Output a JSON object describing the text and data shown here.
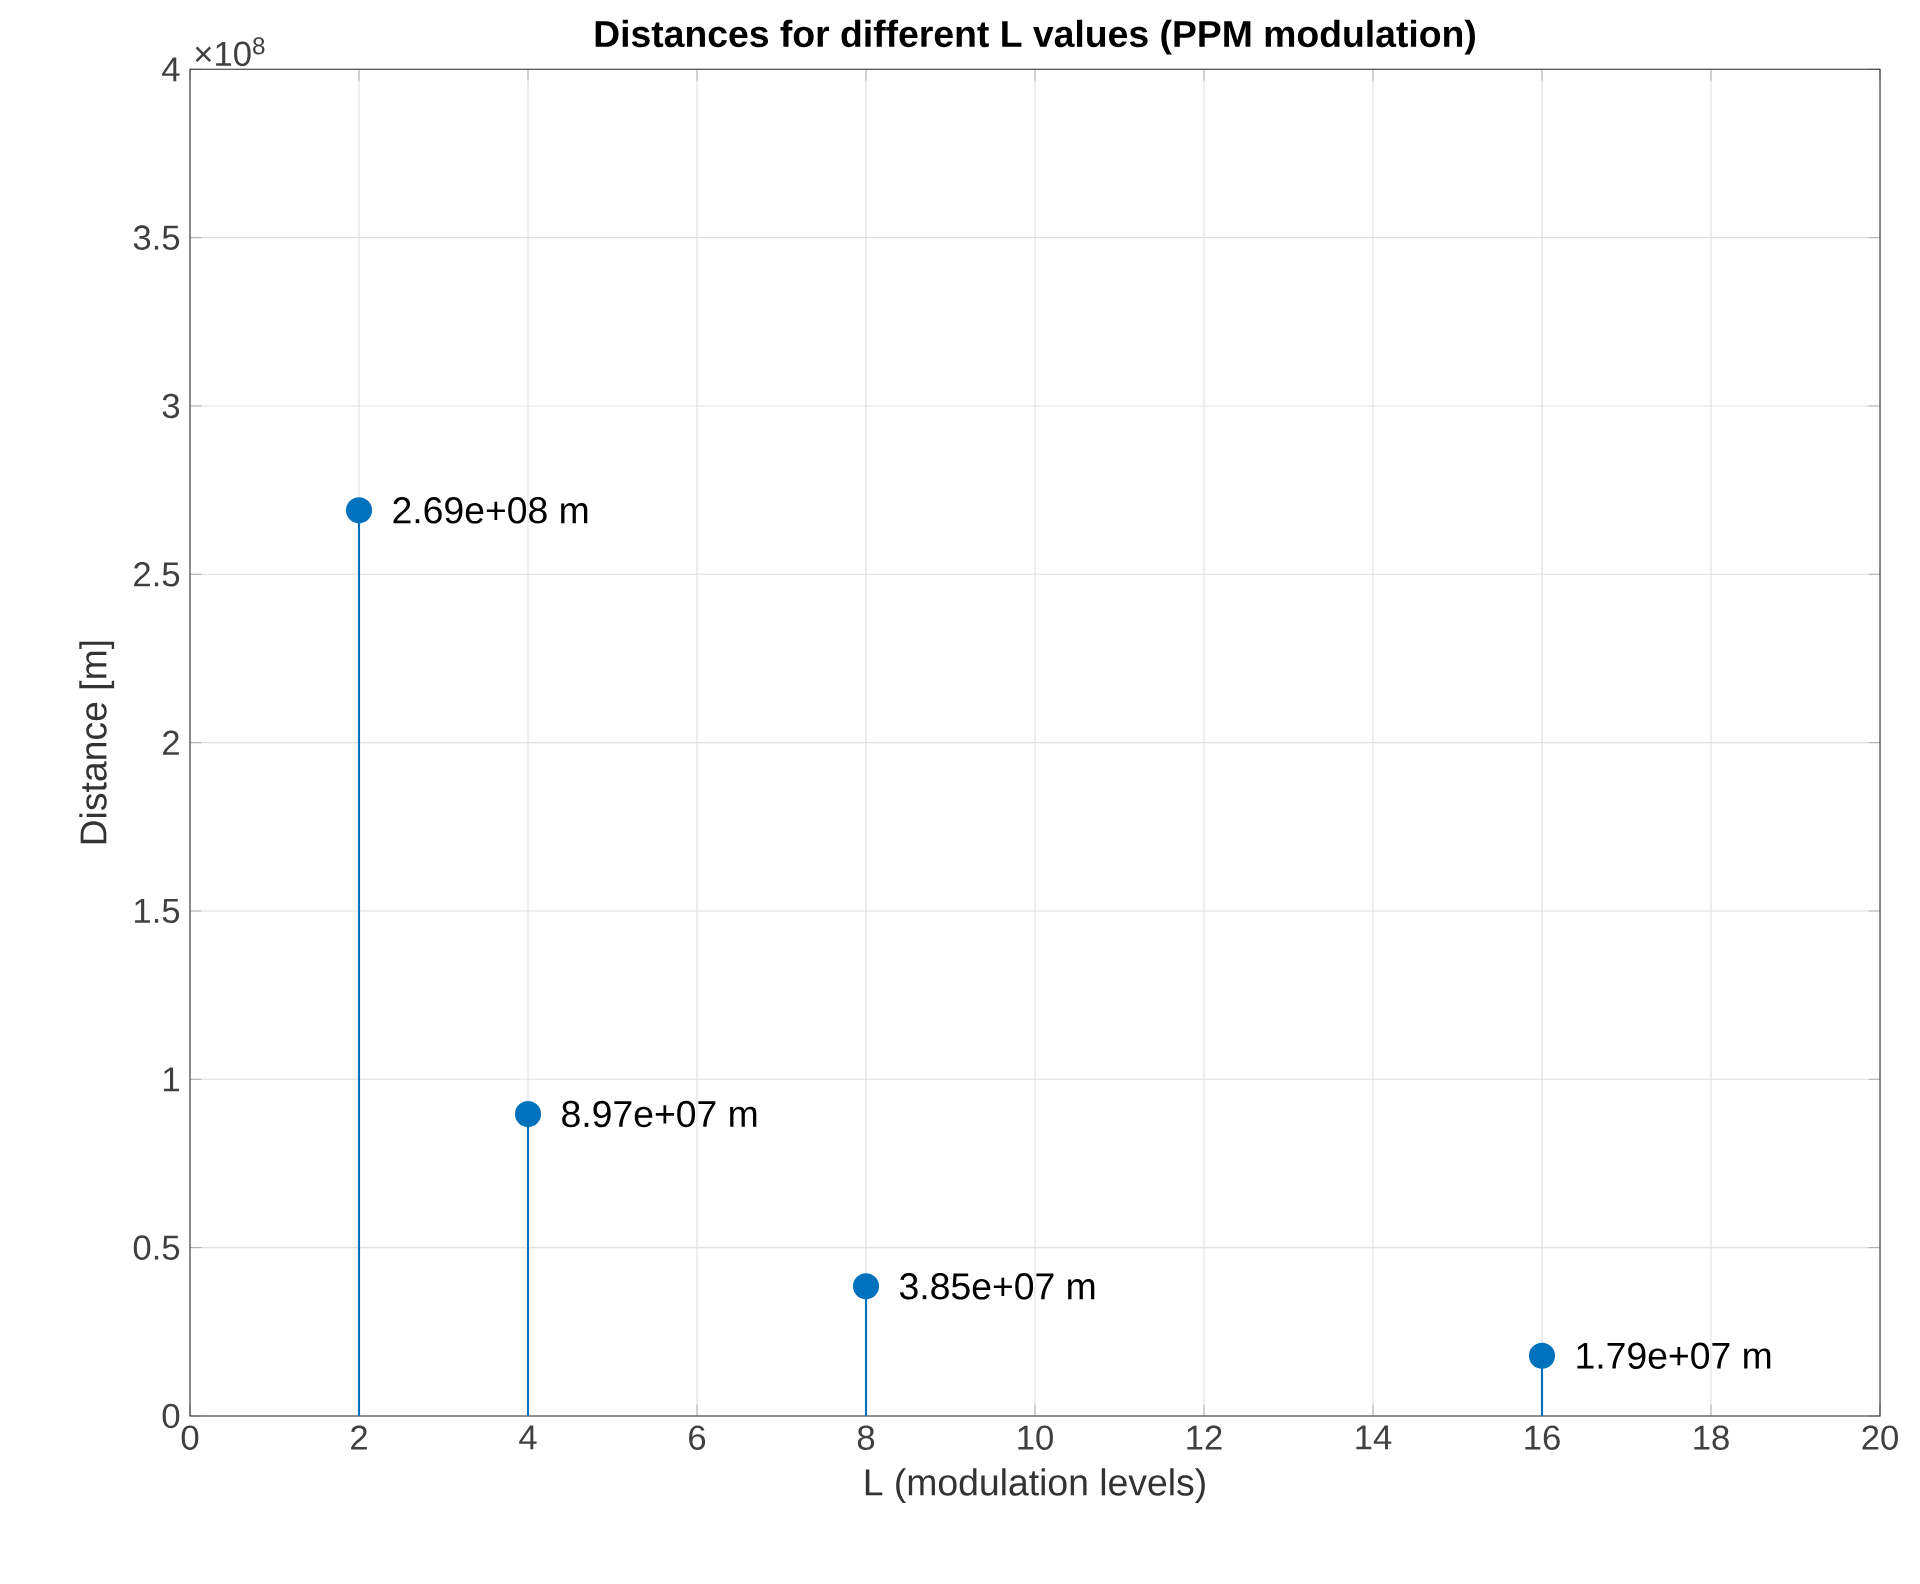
{
  "chart_data": {
    "type": "lollipop",
    "title": "Distances for different L values (PPM modulation)",
    "xlabel": "L (modulation levels)",
    "ylabel": "Distance [m]",
    "x": [
      2,
      4,
      8,
      16
    ],
    "series": [
      {
        "color": "#0072bd",
        "values": [
          2.69,
          0.897,
          0.385,
          0.179
        ],
        "value_labels": [
          "2.69e+08 m",
          "8.97e+07 m",
          "3.85e+07 m",
          "1.79e+07 m"
        ]
      }
    ],
    "xlim": [
      0,
      20
    ],
    "xticks": [
      0,
      2,
      4,
      6,
      8,
      10,
      12,
      14,
      16,
      18,
      20
    ],
    "ylim": [
      0,
      4
    ],
    "yticks": [
      0,
      0.5,
      1,
      1.5,
      2,
      2.5,
      3,
      3.5,
      4
    ],
    "annotations": [
      "×10$^{8}$"
    ],
    "grid": true,
    "marker": "circle"
  }
}
